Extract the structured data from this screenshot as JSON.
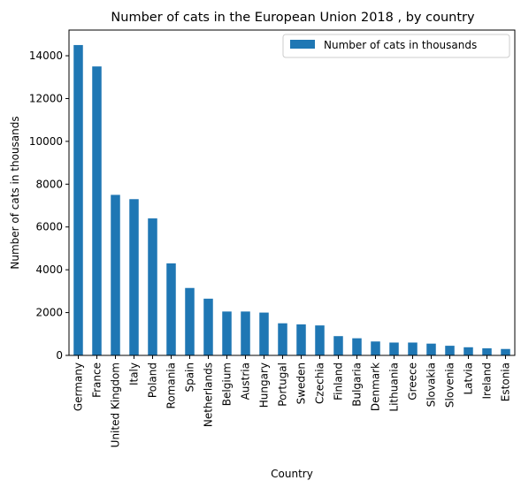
{
  "chart_data": {
    "type": "bar",
    "title": "Number of cats in the European Union 2018 , by country",
    "xlabel": "Country",
    "ylabel": "Number of cats in thousands",
    "ylim": [
      0,
      15200
    ],
    "yticks": [
      0,
      2000,
      4000,
      6000,
      8000,
      10000,
      12000,
      14000
    ],
    "grid": false,
    "legend": "top-right",
    "bar_color": "#1f77b4",
    "series": [
      {
        "name": "Number of cats in thousands",
        "values": [
          14500,
          13500,
          7500,
          7300,
          6400,
          4300,
          3150,
          2650,
          2050,
          2050,
          2000,
          1500,
          1450,
          1400,
          900,
          800,
          650,
          600,
          600,
          550,
          450,
          380,
          330,
          300
        ]
      }
    ],
    "categories": [
      "Germany",
      "France",
      "United Kingdom",
      "Italy",
      "Poland",
      "Romania",
      "Spain",
      "Netherlands",
      "Belgium",
      "Austria",
      "Hungary",
      "Portugal",
      "Sweden",
      "Czechia",
      "Finland",
      "Bulgaria",
      "Denmark",
      "Lithuania",
      "Greece",
      "Slovakia",
      "Slovenia",
      "Latvia",
      "Ireland",
      "Estonia"
    ]
  }
}
